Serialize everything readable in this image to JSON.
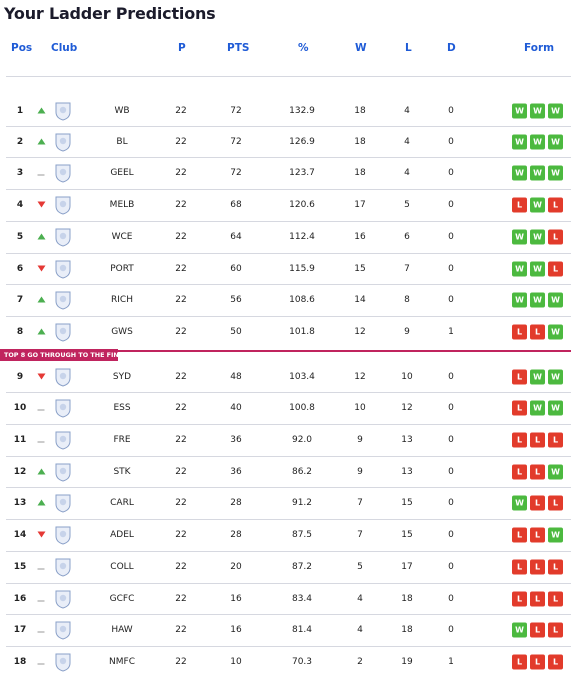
{
  "title": "Your Ladder Predictions",
  "headers": {
    "pos": "Pos",
    "club": "Club",
    "p": "P",
    "pts": "PTS",
    "pct": "%",
    "w": "W",
    "l": "L",
    "d": "D",
    "form": "Form"
  },
  "banner": {
    "prefix": "TOP 8",
    "text": " GO THROUGH TO THE FINALS!"
  },
  "colors": {
    "accent": "#1f5bd6",
    "win": "#4cb93f",
    "loss": "#e23b2b",
    "banner": "#c0245e"
  },
  "rows": [
    {
      "pos": "1",
      "trend": "up",
      "team": "WB",
      "p": "22",
      "pts": "72",
      "pct": "132.9",
      "w": "18",
      "l": "4",
      "d": "0",
      "form": [
        "W",
        "W",
        "W"
      ],
      "logo": "bulldogs-logo"
    },
    {
      "pos": "2",
      "trend": "up",
      "team": "BL",
      "p": "22",
      "pts": "72",
      "pct": "126.9",
      "w": "18",
      "l": "4",
      "d": "0",
      "form": [
        "W",
        "W",
        "W"
      ],
      "logo": "lions-logo"
    },
    {
      "pos": "3",
      "trend": "same",
      "team": "GEEL",
      "p": "22",
      "pts": "72",
      "pct": "123.7",
      "w": "18",
      "l": "4",
      "d": "0",
      "form": [
        "W",
        "W",
        "W"
      ],
      "logo": "cats-logo"
    },
    {
      "pos": "4",
      "trend": "down",
      "team": "MELB",
      "p": "22",
      "pts": "68",
      "pct": "120.6",
      "w": "17",
      "l": "5",
      "d": "0",
      "form": [
        "L",
        "W",
        "L"
      ],
      "logo": "demons-logo"
    },
    {
      "pos": "5",
      "trend": "up",
      "team": "WCE",
      "p": "22",
      "pts": "64",
      "pct": "112.4",
      "w": "16",
      "l": "6",
      "d": "0",
      "form": [
        "W",
        "W",
        "L"
      ],
      "logo": "eagles-logo"
    },
    {
      "pos": "6",
      "trend": "down",
      "team": "PORT",
      "p": "22",
      "pts": "60",
      "pct": "115.9",
      "w": "15",
      "l": "7",
      "d": "0",
      "form": [
        "W",
        "W",
        "L"
      ],
      "logo": "power-logo"
    },
    {
      "pos": "7",
      "trend": "up",
      "team": "RICH",
      "p": "22",
      "pts": "56",
      "pct": "108.6",
      "w": "14",
      "l": "8",
      "d": "0",
      "form": [
        "W",
        "W",
        "W"
      ],
      "logo": "tigers-logo"
    },
    {
      "pos": "8",
      "trend": "up",
      "team": "GWS",
      "p": "22",
      "pts": "50",
      "pct": "101.8",
      "w": "12",
      "l": "9",
      "d": "1",
      "form": [
        "L",
        "L",
        "W"
      ],
      "logo": "giants-logo"
    },
    {
      "pos": "9",
      "trend": "down",
      "team": "SYD",
      "p": "22",
      "pts": "48",
      "pct": "103.4",
      "w": "12",
      "l": "10",
      "d": "0",
      "form": [
        "L",
        "W",
        "W"
      ],
      "logo": "swans-logo"
    },
    {
      "pos": "10",
      "trend": "same",
      "team": "ESS",
      "p": "22",
      "pts": "40",
      "pct": "100.8",
      "w": "10",
      "l": "12",
      "d": "0",
      "form": [
        "L",
        "W",
        "W"
      ],
      "logo": "bombers-logo"
    },
    {
      "pos": "11",
      "trend": "same",
      "team": "FRE",
      "p": "22",
      "pts": "36",
      "pct": "92.0",
      "w": "9",
      "l": "13",
      "d": "0",
      "form": [
        "L",
        "L",
        "L"
      ],
      "logo": "dockers-logo"
    },
    {
      "pos": "12",
      "trend": "up",
      "team": "STK",
      "p": "22",
      "pts": "36",
      "pct": "86.2",
      "w": "9",
      "l": "13",
      "d": "0",
      "form": [
        "L",
        "L",
        "W"
      ],
      "logo": "saints-logo"
    },
    {
      "pos": "13",
      "trend": "up",
      "team": "CARL",
      "p": "22",
      "pts": "28",
      "pct": "91.2",
      "w": "7",
      "l": "15",
      "d": "0",
      "form": [
        "W",
        "L",
        "L"
      ],
      "logo": "blues-logo"
    },
    {
      "pos": "14",
      "trend": "down",
      "team": "ADEL",
      "p": "22",
      "pts": "28",
      "pct": "87.5",
      "w": "7",
      "l": "15",
      "d": "0",
      "form": [
        "L",
        "L",
        "W"
      ],
      "logo": "crows-logo"
    },
    {
      "pos": "15",
      "trend": "same",
      "team": "COLL",
      "p": "22",
      "pts": "20",
      "pct": "87.2",
      "w": "5",
      "l": "17",
      "d": "0",
      "form": [
        "L",
        "L",
        "L"
      ],
      "logo": "magpies-logo"
    },
    {
      "pos": "16",
      "trend": "same",
      "team": "GCFC",
      "p": "22",
      "pts": "16",
      "pct": "83.4",
      "w": "4",
      "l": "18",
      "d": "0",
      "form": [
        "L",
        "L",
        "L"
      ],
      "logo": "suns-logo"
    },
    {
      "pos": "17",
      "trend": "same",
      "team": "HAW",
      "p": "22",
      "pts": "16",
      "pct": "81.4",
      "w": "4",
      "l": "18",
      "d": "0",
      "form": [
        "W",
        "L",
        "L"
      ],
      "logo": "hawks-logo"
    },
    {
      "pos": "18",
      "trend": "same",
      "team": "NMFC",
      "p": "22",
      "pts": "10",
      "pct": "70.3",
      "w": "2",
      "l": "19",
      "d": "1",
      "form": [
        "L",
        "L",
        "L"
      ],
      "logo": "kangaroos-logo"
    }
  ]
}
